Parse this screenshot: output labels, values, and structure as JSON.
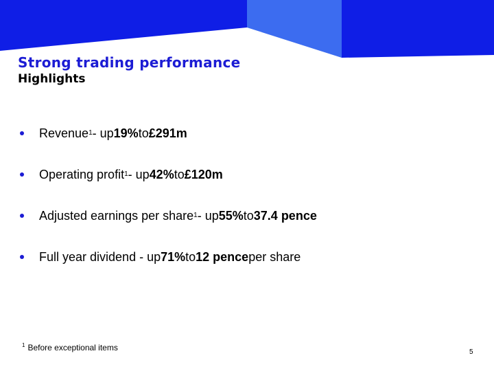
{
  "slide": {
    "title": "Strong trading performance",
    "subtitle": "Highlights",
    "page_number": "5"
  },
  "colors": {
    "banner_dark": "#0f1ee6",
    "banner_light": "#3c6cf0",
    "title": "#1c1cd4",
    "bullet": "#1c1cd4"
  },
  "bullets": [
    {
      "label": "Revenue",
      "sup": "1",
      "mid": " - up ",
      "pct": "19%",
      "to": " to ",
      "value": "£291m",
      "tail": ""
    },
    {
      "label": "Operating profit",
      "sup": "1",
      "mid": " - up ",
      "pct": "42%",
      "to": " to ",
      "value": "£120m",
      "tail": ""
    },
    {
      "label": "Adjusted earnings per share",
      "sup": "1",
      "mid": " - up ",
      "pct": "55%",
      "to": " to ",
      "value": "37.4 pence",
      "tail": ""
    },
    {
      "label": "Full year dividend - up ",
      "sup": "",
      "mid": "",
      "pct": "71%",
      "to": " to ",
      "value": "12 pence",
      "tail": " per share"
    }
  ],
  "footnote": {
    "marker": "1",
    "text": "Before exceptional items"
  }
}
